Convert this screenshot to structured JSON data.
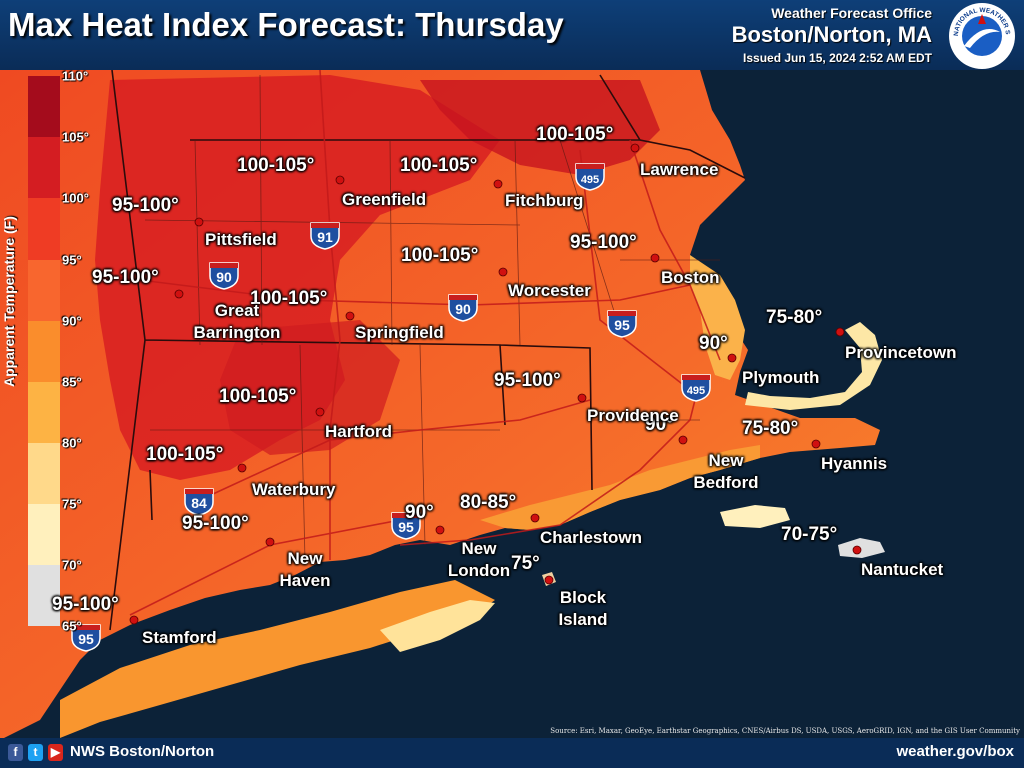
{
  "header": {
    "title": "Max Heat Index Forecast: Thursday",
    "office_label": "Weather Forecast Office",
    "office_location": "Boston/Norton, MA",
    "issued": "Issued Jun 15, 2024 2:52 AM EDT",
    "logo_text": "NATIONAL WEATHER SERVICE"
  },
  "legend": {
    "title": "Apparent Temperature (F)",
    "labels": [
      "110°",
      "105°",
      "100°",
      "95°",
      "90°",
      "85°",
      "80°",
      "75°",
      "70°",
      "65°"
    ],
    "colors": [
      "#a40c1c",
      "#d41d22",
      "#ef3c24",
      "#f8662e",
      "#fa8d2c",
      "#fdb344",
      "#ffd98a",
      "#fff0bd",
      "#e0e0e0",
      "#c8c8c8"
    ]
  },
  "map": {
    "ranges": [
      "95-100°",
      "95-100°",
      "95-100°",
      "95-100°",
      "95-100°",
      "95-100°",
      "100-105°",
      "100-105°",
      "100-105°",
      "100-105°",
      "100-105°",
      "100-105°",
      "100-105°",
      "90°",
      "90°",
      "90°",
      "80-85°",
      "75°",
      "75-80°",
      "75-80°",
      "70-75°"
    ],
    "cities": [
      "Pittsfield",
      "Great Barrington",
      "Greenfield",
      "Springfield",
      "Hartford",
      "Waterbury",
      "New Haven",
      "Stamford",
      "Fitchburg",
      "Worcester",
      "Lawrence",
      "Boston",
      "Providence",
      "New London",
      "Charlestown",
      "Block Island",
      "New Bedford",
      "Plymouth",
      "Provincetown",
      "Hyannis",
      "Nantucket"
    ],
    "interstates": [
      "495",
      "91",
      "90",
      "90",
      "95",
      "495",
      "84",
      "95",
      "95"
    ]
  },
  "footer": {
    "social_icons": [
      "facebook-icon",
      "twitter-icon",
      "youtube-icon"
    ],
    "social_glyphs": [
      "f",
      "t",
      "▶"
    ],
    "social_colors": [
      "#3b5998",
      "#1da1f2",
      "#d9261c"
    ],
    "handle": "NWS Boston/Norton",
    "website": "weather.gov/box",
    "source": "Source: Esri, Maxar, GeoEye, Earthstar Geographics, CNES/Airbus DS, USDA, USGS, AeroGRID, IGN, and the GIS User Community"
  }
}
